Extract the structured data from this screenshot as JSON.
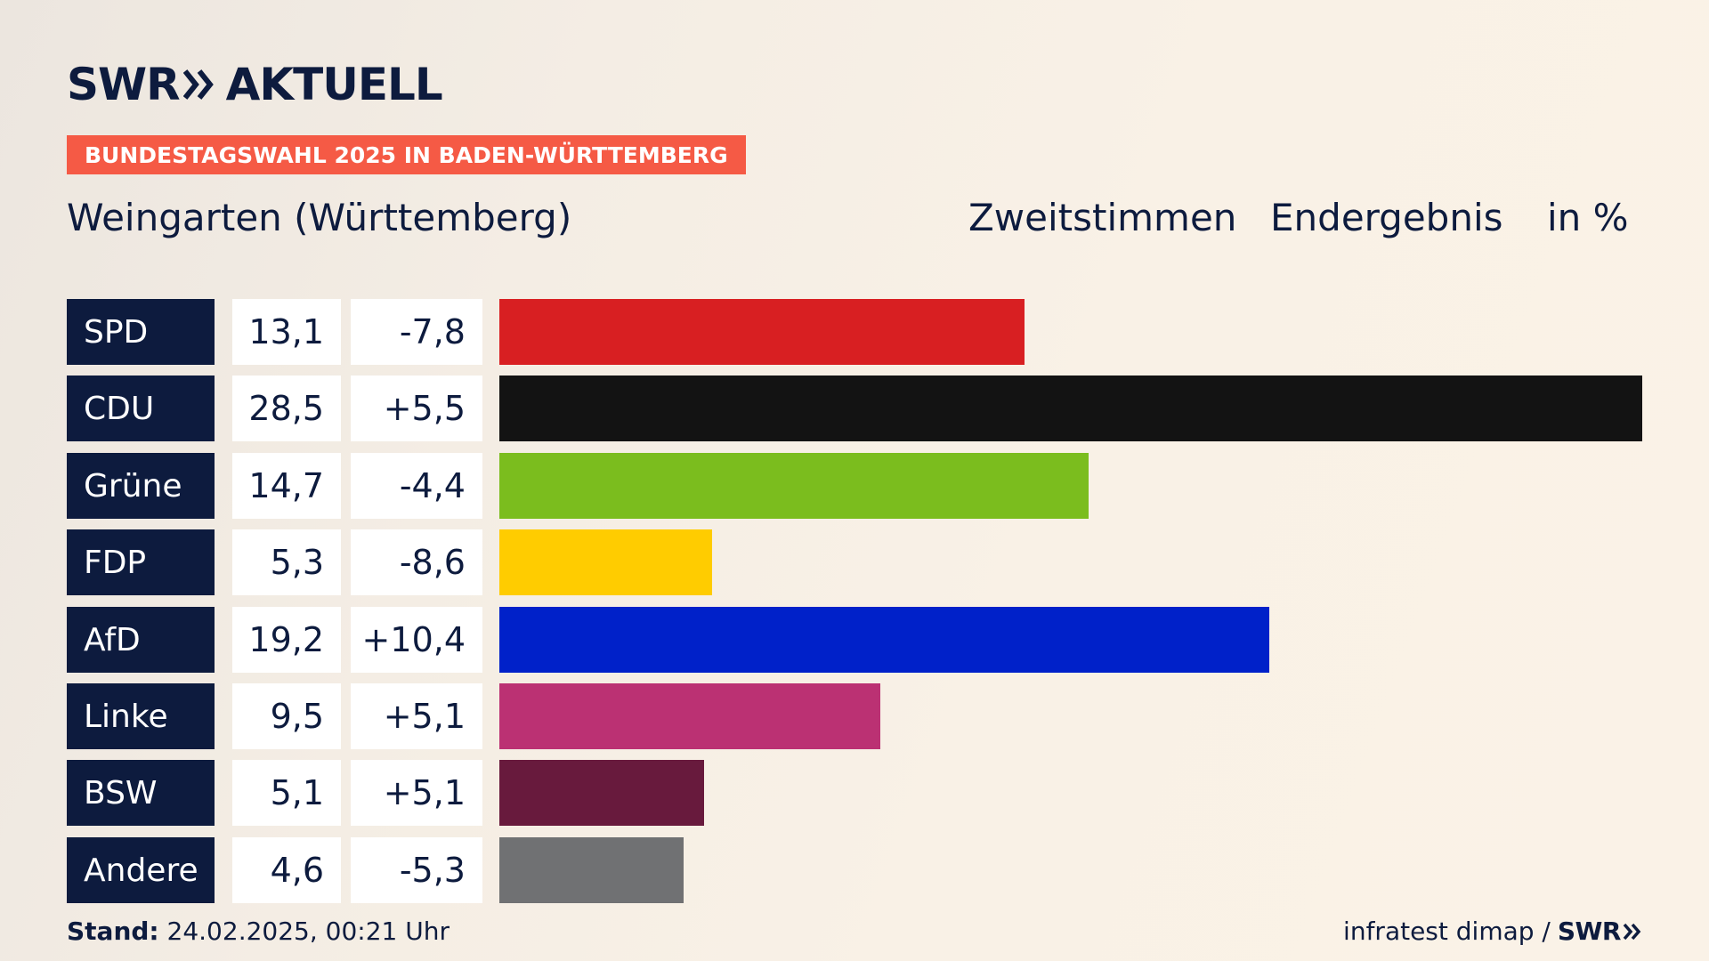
{
  "brand": {
    "logo_left": "SWR",
    "logo_right": "AKTUELL",
    "footer_logo": "SWR"
  },
  "topic": "BUNDESTAGSWAHL 2025 IN BADEN-WÜRTTEMBERG",
  "place": "Weingarten (Württemberg)",
  "headers": {
    "votes": "Zweitstimmen",
    "status": "Endergebnis",
    "unit": "in %"
  },
  "footer": {
    "stand_label": "Stand:",
    "stand_value": "24.02.2025, 00:21 Uhr",
    "source": "infratest dimap /"
  },
  "chart_data": {
    "type": "bar",
    "orientation": "horizontal",
    "categories": [
      "SPD",
      "CDU",
      "Grüne",
      "FDP",
      "AfD",
      "Linke",
      "BSW",
      "Andere"
    ],
    "values": [
      13.1,
      28.5,
      14.7,
      5.3,
      19.2,
      9.5,
      5.1,
      4.6
    ],
    "value_labels": [
      "13,1",
      "28,5",
      "14,7",
      "5,3",
      "19,2",
      "9,5",
      "5,1",
      "4,6"
    ],
    "diff_labels": [
      "-7,8",
      "+5,5",
      "-4,4",
      "-8,6",
      "+10,4",
      "+5,1",
      "+5,1",
      "-5,3"
    ],
    "diffs": [
      -7.8,
      5.5,
      -4.4,
      -8.6,
      10.4,
      5.1,
      5.1,
      -5.3
    ],
    "colors": [
      "#d81f22",
      "#131313",
      "#7bbd1e",
      "#ffcc00",
      "#0021c9",
      "#bb3173",
      "#681a3d",
      "#707173"
    ],
    "xlim": [
      0,
      28.5
    ]
  }
}
